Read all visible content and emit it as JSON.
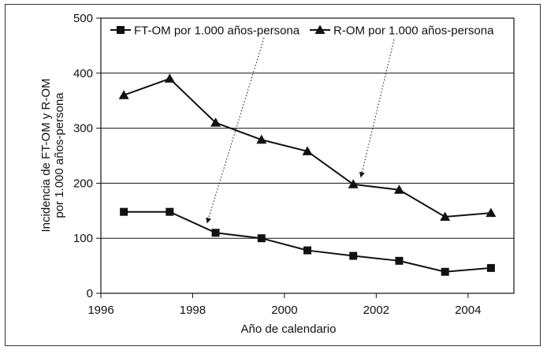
{
  "chart_data": {
    "type": "line",
    "title": "",
    "xlabel": "Año de calendario",
    "ylabel_lines": [
      "Incidencia de FT-OM y R-OM",
      "por 1.000 años-persona"
    ],
    "x": [
      1996.5,
      1997.5,
      1998.5,
      1999.5,
      2000.5,
      2001.5,
      2002.5,
      2003.5,
      2004.5
    ],
    "xlim": [
      1996,
      2005
    ],
    "ylim": [
      0,
      500
    ],
    "x_ticks": [
      "1996",
      "1998",
      "2000",
      "2002",
      "2004"
    ],
    "y_ticks": [
      "0",
      "100",
      "200",
      "300",
      "400",
      "500"
    ],
    "grid": true,
    "legend_position": "top",
    "series": [
      {
        "name": "FT-OM por 1.000 años-persona",
        "marker": "square",
        "color": "#111111",
        "values": [
          148,
          148,
          110,
          100,
          78,
          68,
          59,
          39,
          46
        ]
      },
      {
        "name": "R-OM por 1.000 años-persona",
        "marker": "triangle",
        "color": "#111111",
        "values": [
          360,
          390,
          310,
          279,
          258,
          198,
          188,
          139,
          146
        ]
      }
    ]
  }
}
